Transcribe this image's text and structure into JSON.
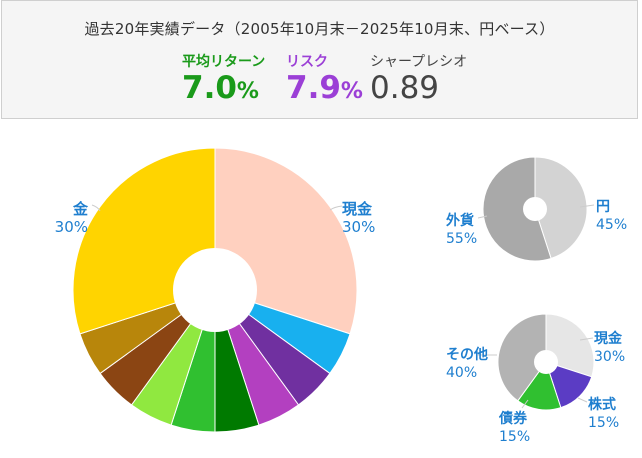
{
  "header": {
    "title": "過去20年実績データ（2005年10月末－2025年10月末、円ベース）",
    "metrics": {
      "return": {
        "label": "平均リターン",
        "value": "7.0",
        "unit": "%",
        "color": "#1a9a1a"
      },
      "risk": {
        "label": "リスク",
        "value": "7.9",
        "unit": "%",
        "color": "#9b3fd6"
      },
      "sharpe": {
        "label": "シャープレシオ",
        "value": "0.89",
        "color": "#444444"
      }
    }
  },
  "chart_data": [
    {
      "type": "pie",
      "slices": [
        {
          "label": "現金",
          "value": 30,
          "color": "#ffd0bf"
        },
        {
          "label": "",
          "value": 5,
          "color": "#18b0ef"
        },
        {
          "label": "",
          "value": 5,
          "color": "#7030a0"
        },
        {
          "label": "",
          "value": 5,
          "color": "#b340c0"
        },
        {
          "label": "",
          "value": 5,
          "color": "#007a00"
        },
        {
          "label": "",
          "value": 5,
          "color": "#30c030"
        },
        {
          "label": "",
          "value": 5,
          "color": "#90e840"
        },
        {
          "label": "",
          "value": 5,
          "color": "#8b4513"
        },
        {
          "label": "",
          "value": 5,
          "color": "#b8860b"
        },
        {
          "label": "金",
          "value": 30,
          "color": "#ffd400"
        }
      ],
      "labels": {
        "cash": {
          "name": "現金",
          "pct": "30%"
        },
        "gold": {
          "name": "金",
          "pct": "30%"
        }
      }
    },
    {
      "type": "pie",
      "slices": [
        {
          "label": "円",
          "value": 45,
          "color": "#d3d3d3"
        },
        {
          "label": "外貨",
          "value": 55,
          "color": "#a9a9a9"
        }
      ],
      "labels": {
        "yen": {
          "name": "円",
          "pct": "45%"
        },
        "foreign": {
          "name": "外貨",
          "pct": "55%"
        }
      }
    },
    {
      "type": "pie",
      "slices": [
        {
          "label": "現金",
          "value": 30,
          "color": "#e6e6e6"
        },
        {
          "label": "株式",
          "value": 15,
          "color": "#5b3cc4"
        },
        {
          "label": "債券",
          "value": 15,
          "color": "#30c030"
        },
        {
          "label": "その他",
          "value": 40,
          "color": "#b3b3b3"
        }
      ],
      "labels": {
        "cash": {
          "name": "現金",
          "pct": "30%"
        },
        "stocks": {
          "name": "株式",
          "pct": "15%"
        },
        "bonds": {
          "name": "債券",
          "pct": "15%"
        },
        "other": {
          "name": "その他",
          "pct": "40%"
        }
      }
    }
  ]
}
